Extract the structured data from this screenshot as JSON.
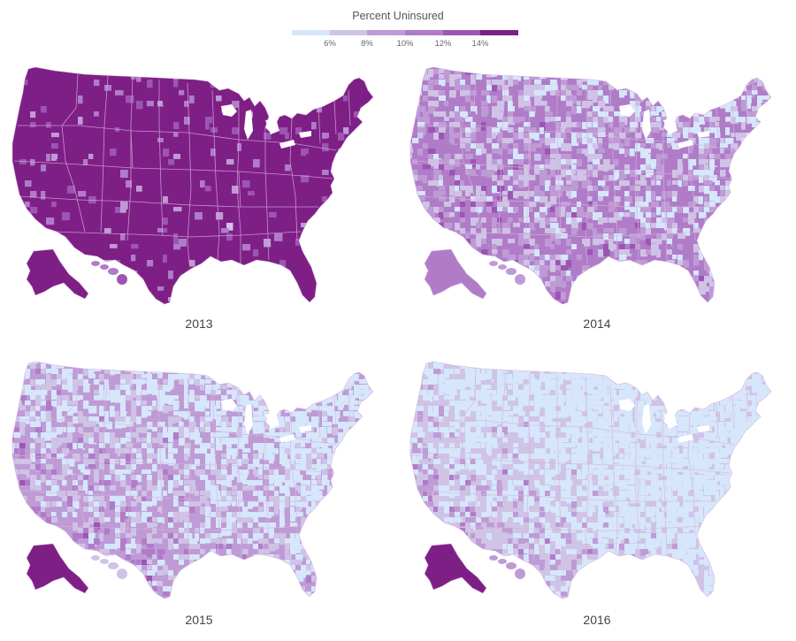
{
  "legend": {
    "title": "Percent Uninsured",
    "colors": [
      "#d6e6fb",
      "#cfc3e6",
      "#bf9bd6",
      "#b07cc8",
      "#9c55b3",
      "#7e1f86"
    ],
    "ticks": [
      "6%",
      "8%",
      "10%",
      "12%",
      "14%"
    ]
  },
  "colors": {
    "boundary": "#d9b3dd"
  },
  "maps": [
    {
      "year": "2013",
      "base_level": 5,
      "variation": 0.08
    },
    {
      "year": "2014",
      "base_level": 3,
      "variation": 0.6
    },
    {
      "year": "2015",
      "base_level": 2,
      "variation": 0.75
    },
    {
      "year": "2016",
      "base_level": 1,
      "variation": 0.85
    }
  ]
}
